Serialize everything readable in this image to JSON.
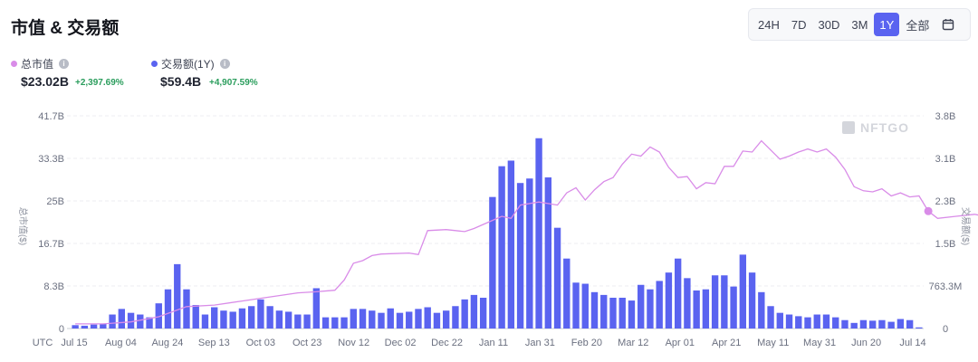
{
  "header": {
    "title": "市值 & 交易额",
    "ranges": [
      "24H",
      "7D",
      "30D",
      "3M",
      "1Y",
      "全部"
    ],
    "active_range": "1Y",
    "calendar_icon": "calendar-icon"
  },
  "legend": {
    "market_cap": {
      "label": "总市值",
      "value": "$23.02B",
      "change": "+2,397.69%",
      "color": "#d98ce8"
    },
    "volume": {
      "label": "交易额(1Y)",
      "value": "$59.4B",
      "change": "+4,907.59%",
      "color": "#5a63f0"
    }
  },
  "watermark": "NFTGO",
  "chart_data": {
    "type": "bar",
    "left_axis": {
      "title": "总市值($)",
      "ticks": [
        "0",
        "8.3B",
        "16.7B",
        "25B",
        "33.3B",
        "41.7B"
      ],
      "ylim": [
        0,
        41.7
      ]
    },
    "right_axis": {
      "title": "交易额($)",
      "ticks": [
        "0",
        "763.3M",
        "1.5B",
        "2.3B",
        "3.1B",
        "3.8B"
      ],
      "ylim": [
        0,
        3.8
      ]
    },
    "x_tick_labels": [
      "UTC",
      "Jul 15",
      "Aug 04",
      "Aug 24",
      "Sep 13",
      "Oct 03",
      "Oct 23",
      "Nov 12",
      "Dec 02",
      "Dec 22",
      "Jan 11",
      "Jan 31",
      "Feb 20",
      "Mar 12",
      "Apr 01",
      "Apr 21",
      "May 11",
      "May 31",
      "Jun 20",
      "Jul 14"
    ],
    "series": [
      {
        "name": "交易额(1Y)",
        "type": "bar",
        "axis": "right",
        "color": "#5a63f0",
        "unit": "B",
        "values": [
          0.06,
          0.05,
          0.07,
          0.08,
          0.25,
          0.35,
          0.28,
          0.25,
          0.2,
          0.45,
          0.7,
          1.15,
          0.7,
          0.42,
          0.25,
          0.38,
          0.32,
          0.3,
          0.36,
          0.4,
          0.52,
          0.4,
          0.32,
          0.3,
          0.25,
          0.25,
          0.72,
          0.2,
          0.2,
          0.2,
          0.35,
          0.35,
          0.32,
          0.28,
          0.36,
          0.28,
          0.3,
          0.35,
          0.38,
          0.28,
          0.32,
          0.4,
          0.52,
          0.6,
          0.55,
          2.35,
          2.9,
          3.0,
          2.6,
          2.68,
          3.4,
          2.7,
          1.8,
          1.25,
          0.82,
          0.8,
          0.65,
          0.6,
          0.55,
          0.55,
          0.5,
          0.78,
          0.7,
          0.85,
          1.0,
          1.25,
          0.9,
          0.68,
          0.7,
          0.95,
          0.95,
          0.75,
          1.32,
          1.0,
          0.65,
          0.4,
          0.28,
          0.25,
          0.22,
          0.2,
          0.25,
          0.25,
          0.2,
          0.15,
          0.1,
          0.15,
          0.14,
          0.15,
          0.12,
          0.17,
          0.15,
          0.02
        ]
      },
      {
        "name": "总市值",
        "type": "line",
        "axis": "left",
        "color": "#d98ce8",
        "unit": "B",
        "points": [
          [
            0,
            0.9
          ],
          [
            3,
            0.9
          ],
          [
            6,
            1.3
          ],
          [
            9,
            2.3
          ],
          [
            12,
            4.3
          ],
          [
            15,
            4.6
          ],
          [
            18,
            5.4
          ],
          [
            21,
            6.2
          ],
          [
            24,
            7.0
          ],
          [
            26,
            7.2
          ],
          [
            28,
            7.5
          ],
          [
            29,
            9.5
          ],
          [
            30,
            12.8
          ],
          [
            31,
            13.3
          ],
          [
            32,
            14.3
          ],
          [
            33,
            14.6
          ],
          [
            36,
            14.8
          ],
          [
            37,
            14.5
          ],
          [
            38,
            19.2
          ],
          [
            40,
            19.4
          ],
          [
            42,
            19.0
          ],
          [
            43,
            19.6
          ],
          [
            45,
            21.2
          ],
          [
            46,
            22.0
          ],
          [
            47,
            21.6
          ],
          [
            48,
            24.2
          ],
          [
            50,
            24.8
          ],
          [
            52,
            24.2
          ],
          [
            53,
            26.6
          ],
          [
            54,
            27.6
          ],
          [
            55,
            25.2
          ],
          [
            56,
            27.2
          ],
          [
            57,
            28.8
          ],
          [
            58,
            29.6
          ],
          [
            59,
            32.2
          ],
          [
            60,
            34.2
          ],
          [
            61,
            33.8
          ],
          [
            62,
            35.6
          ],
          [
            63,
            34.6
          ],
          [
            64,
            31.6
          ],
          [
            65,
            29.6
          ],
          [
            66,
            29.8
          ],
          [
            67,
            27.4
          ],
          [
            68,
            28.6
          ],
          [
            69,
            28.4
          ],
          [
            70,
            31.8
          ],
          [
            71,
            31.8
          ],
          [
            72,
            34.8
          ],
          [
            73,
            34.6
          ],
          [
            74,
            36.8
          ],
          [
            75,
            35.0
          ],
          [
            76,
            33.2
          ],
          [
            77,
            33.8
          ],
          [
            78,
            34.6
          ],
          [
            79,
            35.2
          ],
          [
            80,
            34.6
          ],
          [
            81,
            35.2
          ],
          [
            82,
            33.6
          ],
          [
            83,
            31.2
          ],
          [
            84,
            27.8
          ],
          [
            85,
            27.0
          ],
          [
            86,
            26.8
          ],
          [
            87,
            27.4
          ],
          [
            88,
            26.0
          ],
          [
            89,
            26.6
          ],
          [
            90,
            25.8
          ],
          [
            91,
            26.0
          ],
          [
            92,
            23.02
          ],
          [
            93,
            21.6
          ],
          [
            95,
            22.0
          ],
          [
            97,
            22.4
          ],
          [
            98,
            22.0
          ],
          [
            100,
            23.0
          ],
          [
            101,
            22.6
          ],
          [
            102,
            22.6
          ]
        ]
      }
    ]
  }
}
